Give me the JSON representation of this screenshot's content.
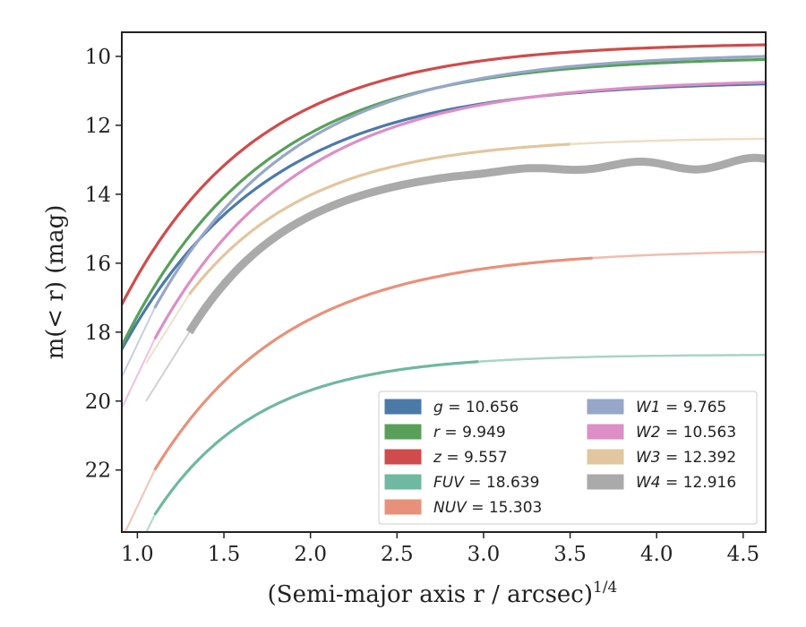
{
  "chart_data": {
    "type": "line",
    "xlabel": "(Semi-major axis r / arcsec)",
    "xlabel_sup": "1/4",
    "ylabel": "m(< r) (mag)",
    "xlim": [
      0.91,
      4.63
    ],
    "ylim": [
      9.3,
      23.8
    ],
    "y_inverted": true,
    "grid": false,
    "legend_position": "lower-right",
    "x_ticks": [
      "1.0",
      "1.5",
      "2.0",
      "2.5",
      "3.0",
      "3.5",
      "4.0",
      "4.5"
    ],
    "y_ticks": [
      "10",
      "12",
      "14",
      "16",
      "18",
      "20",
      "22"
    ],
    "series": [
      {
        "band": "g",
        "value": "10.656",
        "color": "#4c7aa8",
        "x_start": 0.91,
        "x_solid_end": 4.63,
        "start_mag": 18.5,
        "asymptote": 10.7,
        "scale": 0.85
      },
      {
        "band": "r",
        "value": "9.949",
        "color": "#58a05a",
        "x_start": 0.91,
        "x_solid_end": 4.63,
        "start_mag": 18.4,
        "asymptote": 10.0,
        "scale": 0.82
      },
      {
        "band": "z",
        "value": "9.557",
        "color": "#d04b4b",
        "x_start": 0.91,
        "x_solid_end": 4.63,
        "start_mag": 17.2,
        "asymptote": 9.6,
        "scale": 0.78
      },
      {
        "band": "FUV",
        "value": "18.639",
        "color": "#6fb8a2",
        "x_start": 1.1,
        "x_solid_end": 2.97,
        "start_mag": 23.3,
        "asymptote": 18.65,
        "scale": 0.6
      },
      {
        "band": "NUV",
        "value": "15.303",
        "color": "#e8917a",
        "x_start": 1.1,
        "x_solid_end": 3.63,
        "start_mag": 22.0,
        "asymptote": 15.6,
        "scale": 0.78
      },
      {
        "band": "W1",
        "value": "9.765",
        "color": "#97a7c9",
        "x_start": 1.1,
        "x_solid_end": 4.63,
        "start_mag": 17.3,
        "asymptote": 9.9,
        "scale": 0.82
      },
      {
        "band": "W2",
        "value": "10.563",
        "color": "#dd8ec6",
        "x_start": 1.1,
        "x_solid_end": 4.63,
        "start_mag": 18.2,
        "asymptote": 10.65,
        "scale": 0.82
      },
      {
        "band": "W3",
        "value": "12.392",
        "color": "#e2c69e",
        "x_start": 1.3,
        "x_solid_end": 3.5,
        "start_mag": 16.9,
        "asymptote": 12.35,
        "scale": 0.7
      },
      {
        "band": "W4",
        "value": "12.916",
        "color": "#aaaaaa",
        "x_start": 1.3,
        "x_solid_end": 4.63,
        "start_mag": 18.0,
        "asymptote": 13.1,
        "scale": 0.6
      }
    ]
  }
}
